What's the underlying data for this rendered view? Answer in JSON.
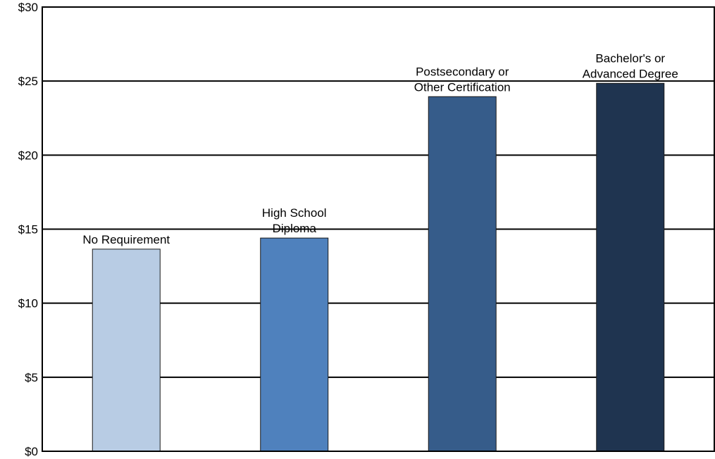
{
  "chart_data": {
    "type": "bar",
    "categories": [
      [
        "No Requirement"
      ],
      [
        "High School",
        "Diploma"
      ],
      [
        "Postsecondary or",
        "Other Certification"
      ],
      [
        "Bachelor's or",
        "Advanced Degree"
      ]
    ],
    "values": [
      13.65,
      14.4,
      23.95,
      24.85
    ],
    "colors": [
      "#b8cce4",
      "#4f81bd",
      "#365c8a",
      "#1f3450"
    ],
    "yticks": [
      "$0",
      "$5",
      "$10",
      "$15",
      "$20",
      "$25",
      "$30"
    ],
    "ylim": [
      0,
      30
    ],
    "grid": true,
    "legend": "none",
    "title": "",
    "xlabel": "",
    "ylabel": ""
  }
}
